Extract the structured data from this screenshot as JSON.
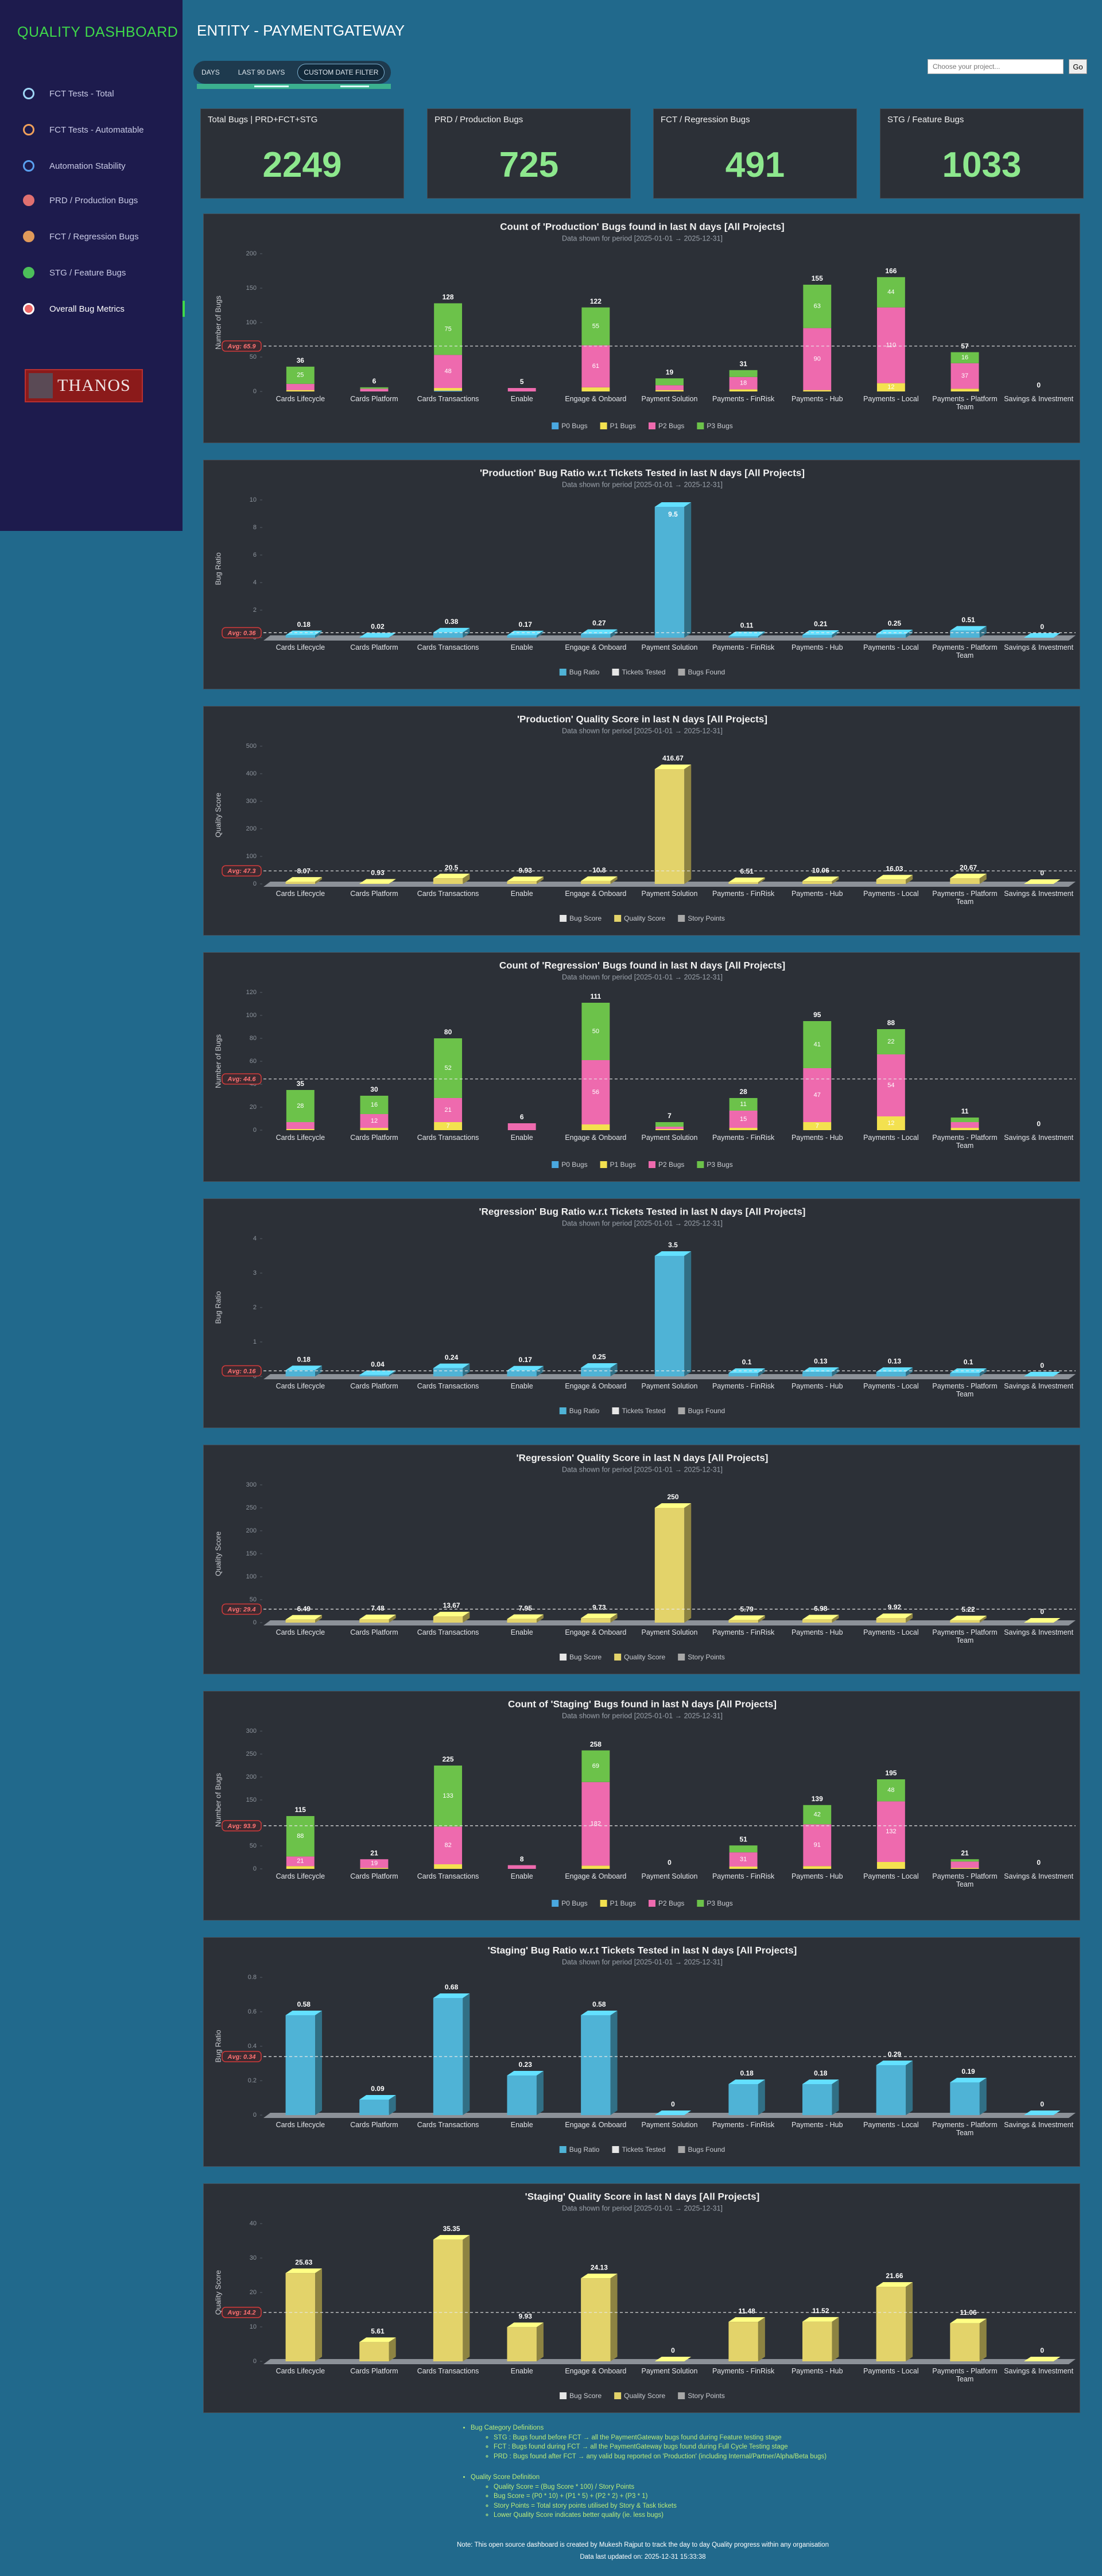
{
  "sidebar": {
    "title": "QUALITY DASHBOARD",
    "nav": [
      "FCT Tests - Total",
      "FCT Tests - Automatable",
      "Automation Stability",
      "PRD / Production Bugs",
      "FCT / Regression Bugs",
      "STG / Feature Bugs",
      "Overall Bug Metrics"
    ],
    "logo": "THANOS"
  },
  "header": {
    "title": "ENTITY - PAYMENTGATEWAY",
    "filters": [
      "DAYS",
      "LAST 90 DAYS",
      "CUSTOM DATE FILTER"
    ],
    "search_placeholder": "Choose your project...",
    "search_button": "Go"
  },
  "kpis": [
    {
      "label": "Total Bugs | PRD+FCT+STG",
      "value": 2249
    },
    {
      "label": "PRD / Production Bugs",
      "value": 725
    },
    {
      "label": "FCT / Regression Bugs",
      "value": 491
    },
    {
      "label": "STG / Feature Bugs",
      "value": 1033
    }
  ],
  "chart_data": [
    {
      "type": "stacked",
      "title": "Count of 'Production' Bugs found in last N days [All Projects]",
      "subtitle": "Data shown for period [2025-01-01 → 2025-12-31]",
      "y_label": "Number of Bugs",
      "categories": [
        "Cards Lifecycle",
        "Cards Platform",
        "Cards Transactions",
        "Enable",
        "Engage & Onboard",
        "Payment Solution",
        "Payments - FinRisk",
        "Payments - Hub",
        "Payments - Local",
        "Payments - Platform Team",
        "Savings & Investment"
      ],
      "series": [
        {
          "name": "P0 Bugs",
          "color": "#4aa8e0",
          "values": [
            0,
            0,
            1,
            0,
            0,
            0,
            0,
            0,
            0,
            0,
            0
          ]
        },
        {
          "name": "P1 Bugs",
          "color": "#f3e14f",
          "values": [
            2,
            0,
            4,
            0,
            6,
            2,
            3,
            2,
            12,
            4,
            0
          ]
        },
        {
          "name": "P2 Bugs",
          "color": "#ee6aae",
          "values": [
            9,
            4,
            48,
            5,
            61,
            7,
            18,
            90,
            110,
            37,
            0
          ]
        },
        {
          "name": "P3 Bugs",
          "color": "#6cc24a",
          "values": [
            25,
            2,
            75,
            0,
            55,
            10,
            10,
            63,
            44,
            16,
            0
          ]
        }
      ],
      "totals": [
        36,
        6,
        128,
        5,
        122,
        19,
        31,
        155,
        166,
        57,
        0
      ],
      "ylim": [
        0,
        200
      ],
      "yticks": [
        0,
        50,
        100,
        150,
        200
      ],
      "avg": {
        "value": 65.9,
        "label": "Avg: 65.9"
      }
    },
    {
      "type": "bar",
      "title": "'Production' Bug Ratio w.r.t Tickets Tested in last N days [All Projects]",
      "subtitle": "Data shown for period [2025-01-01 → 2025-12-31]",
      "y_label": "Bug Ratio",
      "categories": [
        "Cards Lifecycle",
        "Cards Platform",
        "Cards Transactions",
        "Enable",
        "Engage & Onboard",
        "Payment Solution",
        "Payments - FinRisk",
        "Payments - Hub",
        "Payments - Local",
        "Payments - Platform Team",
        "Savings & Investment"
      ],
      "series": [
        {
          "name": "Bug Ratio",
          "color": "#4fb3d6",
          "values": [
            0.18,
            0.02,
            0.38,
            0.17,
            0.27,
            9.5,
            0.11,
            0.21,
            0.25,
            0.51,
            0
          ]
        },
        {
          "name": "Tickets Tested",
          "color": "#e6e6e6"
        },
        {
          "name": "Bugs Found",
          "color": "#a8a8a8"
        }
      ],
      "ylim": [
        0,
        10
      ],
      "yticks": [
        0,
        2,
        4,
        6,
        8,
        10
      ],
      "avg": {
        "value": 0.36,
        "label": "Avg: 0.36"
      }
    },
    {
      "type": "bar",
      "title": "'Production' Quality Score in last N days [All Projects]",
      "subtitle": "Data shown for period [2025-01-01 → 2025-12-31]",
      "y_label": "Quality Score",
      "categories": [
        "Cards Lifecycle",
        "Cards Platform",
        "Cards Transactions",
        "Enable",
        "Engage & Onboard",
        "Payment Solution",
        "Payments - FinRisk",
        "Payments - Hub",
        "Payments - Local",
        "Payments - Platform Team",
        "Savings & Investment"
      ],
      "series": [
        {
          "name": "Bug Score",
          "color": "#e6e6e6"
        },
        {
          "name": "Quality Score",
          "color": "#e3d36a",
          "values": [
            8.07,
            0.93,
            20.5,
            9.93,
            10.8,
            416.67,
            6.51,
            10.06,
            16.03,
            20.67,
            0
          ]
        },
        {
          "name": "Story Points",
          "color": "#a8a8a8"
        }
      ],
      "ylim": [
        0,
        500
      ],
      "yticks": [
        0,
        100,
        200,
        300,
        400,
        500
      ],
      "avg": {
        "value": 47.3,
        "label": "Avg: 47.3"
      }
    },
    {
      "type": "stacked",
      "title": "Count of 'Regression' Bugs found in last N days [All Projects]",
      "subtitle": "Data shown for period [2025-01-01 → 2025-12-31]",
      "y_label": "Number of Bugs",
      "categories": [
        "Cards Lifecycle",
        "Cards Platform",
        "Cards Transactions",
        "Enable",
        "Engage & Onboard",
        "Payment Solution",
        "Payments - FinRisk",
        "Payments - Hub",
        "Payments - Local",
        "Payments - Platform Team",
        "Savings & Investment"
      ],
      "series": [
        {
          "name": "P0 Bugs",
          "color": "#4aa8e0",
          "values": [
            0,
            0,
            0,
            0,
            0,
            0,
            0,
            0,
            0,
            0,
            0
          ]
        },
        {
          "name": "P1 Bugs",
          "color": "#f3e14f",
          "values": [
            1,
            2,
            7,
            0,
            5,
            1,
            2,
            7,
            12,
            2,
            0
          ]
        },
        {
          "name": "P2 Bugs",
          "color": "#ee6aae",
          "values": [
            6,
            12,
            21,
            6,
            56,
            2,
            15,
            47,
            54,
            5,
            0
          ]
        },
        {
          "name": "P3 Bugs",
          "color": "#6cc24a",
          "values": [
            28,
            16,
            52,
            0,
            50,
            4,
            11,
            41,
            22,
            4,
            0
          ]
        }
      ],
      "totals": [
        35,
        30,
        80,
        6,
        111,
        7,
        28,
        95,
        88,
        11,
        0
      ],
      "ylim": [
        0,
        120
      ],
      "yticks": [
        0,
        20,
        40,
        60,
        80,
        100,
        120
      ],
      "avg": {
        "value": 44.6,
        "label": "Avg: 44.6"
      }
    },
    {
      "type": "bar",
      "title": "'Regression' Bug Ratio w.r.t Tickets Tested in last N days [All Projects]",
      "subtitle": "Data shown for period [2025-01-01 → 2025-12-31]",
      "y_label": "Bug Ratio",
      "categories": [
        "Cards Lifecycle",
        "Cards Platform",
        "Cards Transactions",
        "Enable",
        "Engage & Onboard",
        "Payment Solution",
        "Payments - FinRisk",
        "Payments - Hub",
        "Payments - Local",
        "Payments - Platform Team",
        "Savings & Investment"
      ],
      "series": [
        {
          "name": "Bug Ratio",
          "color": "#4fb3d6",
          "values": [
            0.18,
            0.04,
            0.24,
            0.17,
            0.25,
            3.5,
            0.1,
            0.13,
            0.13,
            0.1,
            0
          ]
        },
        {
          "name": "Tickets Tested",
          "color": "#e6e6e6"
        },
        {
          "name": "Bugs Found",
          "color": "#a8a8a8"
        }
      ],
      "ylim": [
        0,
        4
      ],
      "yticks": [
        0,
        1,
        2,
        3,
        4
      ],
      "avg": {
        "value": 0.16,
        "label": "Avg: 0.16"
      }
    },
    {
      "type": "bar",
      "title": "'Regression' Quality Score in last N days [All Projects]",
      "subtitle": "Data shown for period [2025-01-01 → 2025-12-31]",
      "y_label": "Quality Score",
      "categories": [
        "Cards Lifecycle",
        "Cards Platform",
        "Cards Transactions",
        "Enable",
        "Engage & Onboard",
        "Payment Solution",
        "Payments - FinRisk",
        "Payments - Hub",
        "Payments - Local",
        "Payments - Platform Team",
        "Savings & Investment"
      ],
      "series": [
        {
          "name": "Bug Score",
          "color": "#e6e6e6"
        },
        {
          "name": "Quality Score",
          "color": "#e3d36a",
          "values": [
            6.49,
            7.48,
            13.67,
            7.95,
            9.73,
            250,
            5.79,
            6.98,
            9.92,
            5.22,
            0
          ]
        },
        {
          "name": "Story Points",
          "color": "#a8a8a8"
        }
      ],
      "ylim": [
        0,
        300
      ],
      "yticks": [
        0,
        50,
        100,
        150,
        200,
        250,
        300
      ],
      "avg": {
        "value": 29.4,
        "label": "Avg: 29.4"
      }
    },
    {
      "type": "stacked",
      "title": "Count of 'Staging' Bugs found in last N days [All Projects]",
      "subtitle": "Data shown for period [2025-01-01 → 2025-12-31]",
      "y_label": "Number of Bugs",
      "categories": [
        "Cards Lifecycle",
        "Cards Platform",
        "Cards Transactions",
        "Enable",
        "Engage & Onboard",
        "Payment Solution",
        "Payments - FinRisk",
        "Payments - Hub",
        "Payments - Local",
        "Payments - Platform Team",
        "Savings & Investment"
      ],
      "series": [
        {
          "name": "P0 Bugs",
          "color": "#4aa8e0",
          "values": [
            0,
            0,
            0,
            0,
            0,
            0,
            0,
            0,
            0,
            0,
            0
          ]
        },
        {
          "name": "P1 Bugs",
          "color": "#f3e14f",
          "values": [
            6,
            2,
            10,
            0,
            7,
            0,
            5,
            6,
            15,
            2,
            0
          ]
        },
        {
          "name": "P2 Bugs",
          "color": "#ee6aae",
          "values": [
            21,
            19,
            82,
            8,
            182,
            0,
            31,
            91,
            132,
            14,
            0
          ]
        },
        {
          "name": "P3 Bugs",
          "color": "#6cc24a",
          "values": [
            88,
            0,
            133,
            0,
            69,
            0,
            15,
            42,
            48,
            5,
            0
          ]
        }
      ],
      "totals": [
        115,
        21,
        225,
        8,
        258,
        0,
        51,
        139,
        195,
        21,
        0
      ],
      "ylim": [
        0,
        300
      ],
      "yticks": [
        0,
        50,
        100,
        150,
        200,
        250,
        300
      ],
      "avg": {
        "value": 93.9,
        "label": "Avg: 93.9"
      }
    },
    {
      "type": "bar",
      "title": "'Staging' Bug Ratio w.r.t Tickets Tested in last N days [All Projects]",
      "subtitle": "Data shown for period [2025-01-01 → 2025-12-31]",
      "y_label": "Bug Ratio",
      "categories": [
        "Cards Lifecycle",
        "Cards Platform",
        "Cards Transactions",
        "Enable",
        "Engage & Onboard",
        "Payment Solution",
        "Payments - FinRisk",
        "Payments - Hub",
        "Payments - Local",
        "Payments - Platform Team",
        "Savings & Investment"
      ],
      "series": [
        {
          "name": "Bug Ratio",
          "color": "#4fb3d6",
          "values": [
            0.58,
            0.09,
            0.68,
            0.23,
            0.58,
            0,
            0.18,
            0.18,
            0.29,
            0.19,
            0
          ]
        },
        {
          "name": "Tickets Tested",
          "color": "#e6e6e6"
        },
        {
          "name": "Bugs Found",
          "color": "#a8a8a8"
        }
      ],
      "ylim": [
        0,
        0.8
      ],
      "yticks": [
        0,
        0.2,
        0.4,
        0.6,
        0.8
      ],
      "avg": {
        "value": 0.34,
        "label": "Avg: 0.34"
      }
    },
    {
      "type": "bar",
      "title": "'Staging' Quality Score in last N days [All Projects]",
      "subtitle": "Data shown for period [2025-01-01 → 2025-12-31]",
      "y_label": "Quality Score",
      "categories": [
        "Cards Lifecycle",
        "Cards Platform",
        "Cards Transactions",
        "Enable",
        "Engage & Onboard",
        "Payment Solution",
        "Payments - FinRisk",
        "Payments - Hub",
        "Payments - Local",
        "Payments - Platform Team",
        "Savings & Investment"
      ],
      "series": [
        {
          "name": "Bug Score",
          "color": "#e6e6e6"
        },
        {
          "name": "Quality Score",
          "color": "#e3d36a",
          "values": [
            25.63,
            5.61,
            35.35,
            9.93,
            24.13,
            0,
            11.48,
            11.52,
            21.66,
            11.06,
            0
          ]
        },
        {
          "name": "Story Points",
          "color": "#a8a8a8"
        }
      ],
      "ylim": [
        0,
        40
      ],
      "yticks": [
        0,
        10,
        20,
        30,
        40
      ],
      "avg": {
        "value": 14.2,
        "label": "Avg: 14.2"
      }
    }
  ],
  "footer": {
    "sections": [
      {
        "title": "Bug Category Definitions",
        "items": [
          "STG : Bugs found before FCT → all the PaymentGateway bugs found during Feature testing stage",
          "FCT : Bugs found during FCT → all the PaymentGateway bugs found during Full Cycle Testing stage",
          "PRD : Bugs found after FCT → any valid bug reported on 'Production' (including Internal/Partner/Alpha/Beta bugs)"
        ]
      },
      {
        "title": "Quality Score Definition",
        "items": [
          "Quality Score = (Bug Score * 100) / Story Points",
          "Bug Score = (P0 * 10) + (P1 * 5) + (P2 * 2) + (P3 * 1)",
          "Story Points = Total story points utilised by Story & Task tickets",
          "Lower Quality Score indicates better quality (ie. less bugs)"
        ]
      }
    ],
    "note": "Note: This open source dashboard is created by Mukesh Rajput to track the day to day Quality progress within any organisation",
    "updated": "Data last updated on: 2025-12-31 15:33:38"
  }
}
